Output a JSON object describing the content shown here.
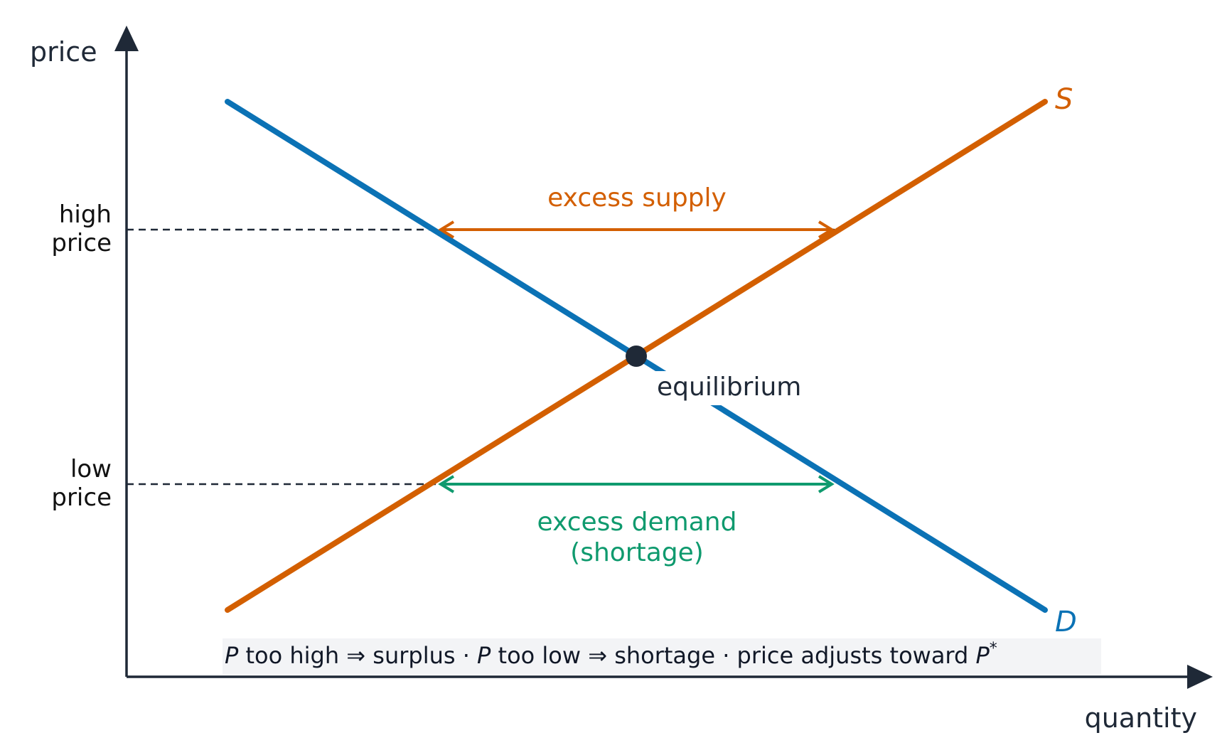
{
  "axes": {
    "y_label": "price",
    "x_label": "quantity"
  },
  "price_levels": {
    "high_line1": "high",
    "high_line2": "price",
    "low_line1": "low",
    "low_line2": "price"
  },
  "curves": {
    "supply_label": "S",
    "demand_label": "D",
    "supply_color": "#d35f00",
    "demand_color": "#0b72b5"
  },
  "annotations": {
    "excess_supply": "excess supply",
    "excess_demand_line1": "excess demand",
    "excess_demand_line2": "(shortage)",
    "equilibrium": "equilibrium",
    "excess_supply_color": "#d35f00",
    "excess_demand_color": "#0f9a6e"
  },
  "note": {
    "p1": "P",
    "part1": " too high ⇒ surplus · ",
    "p2": "P",
    "part2": " too low ⇒ shortage · price adjusts toward ",
    "p3": "P",
    "star": "*"
  }
}
